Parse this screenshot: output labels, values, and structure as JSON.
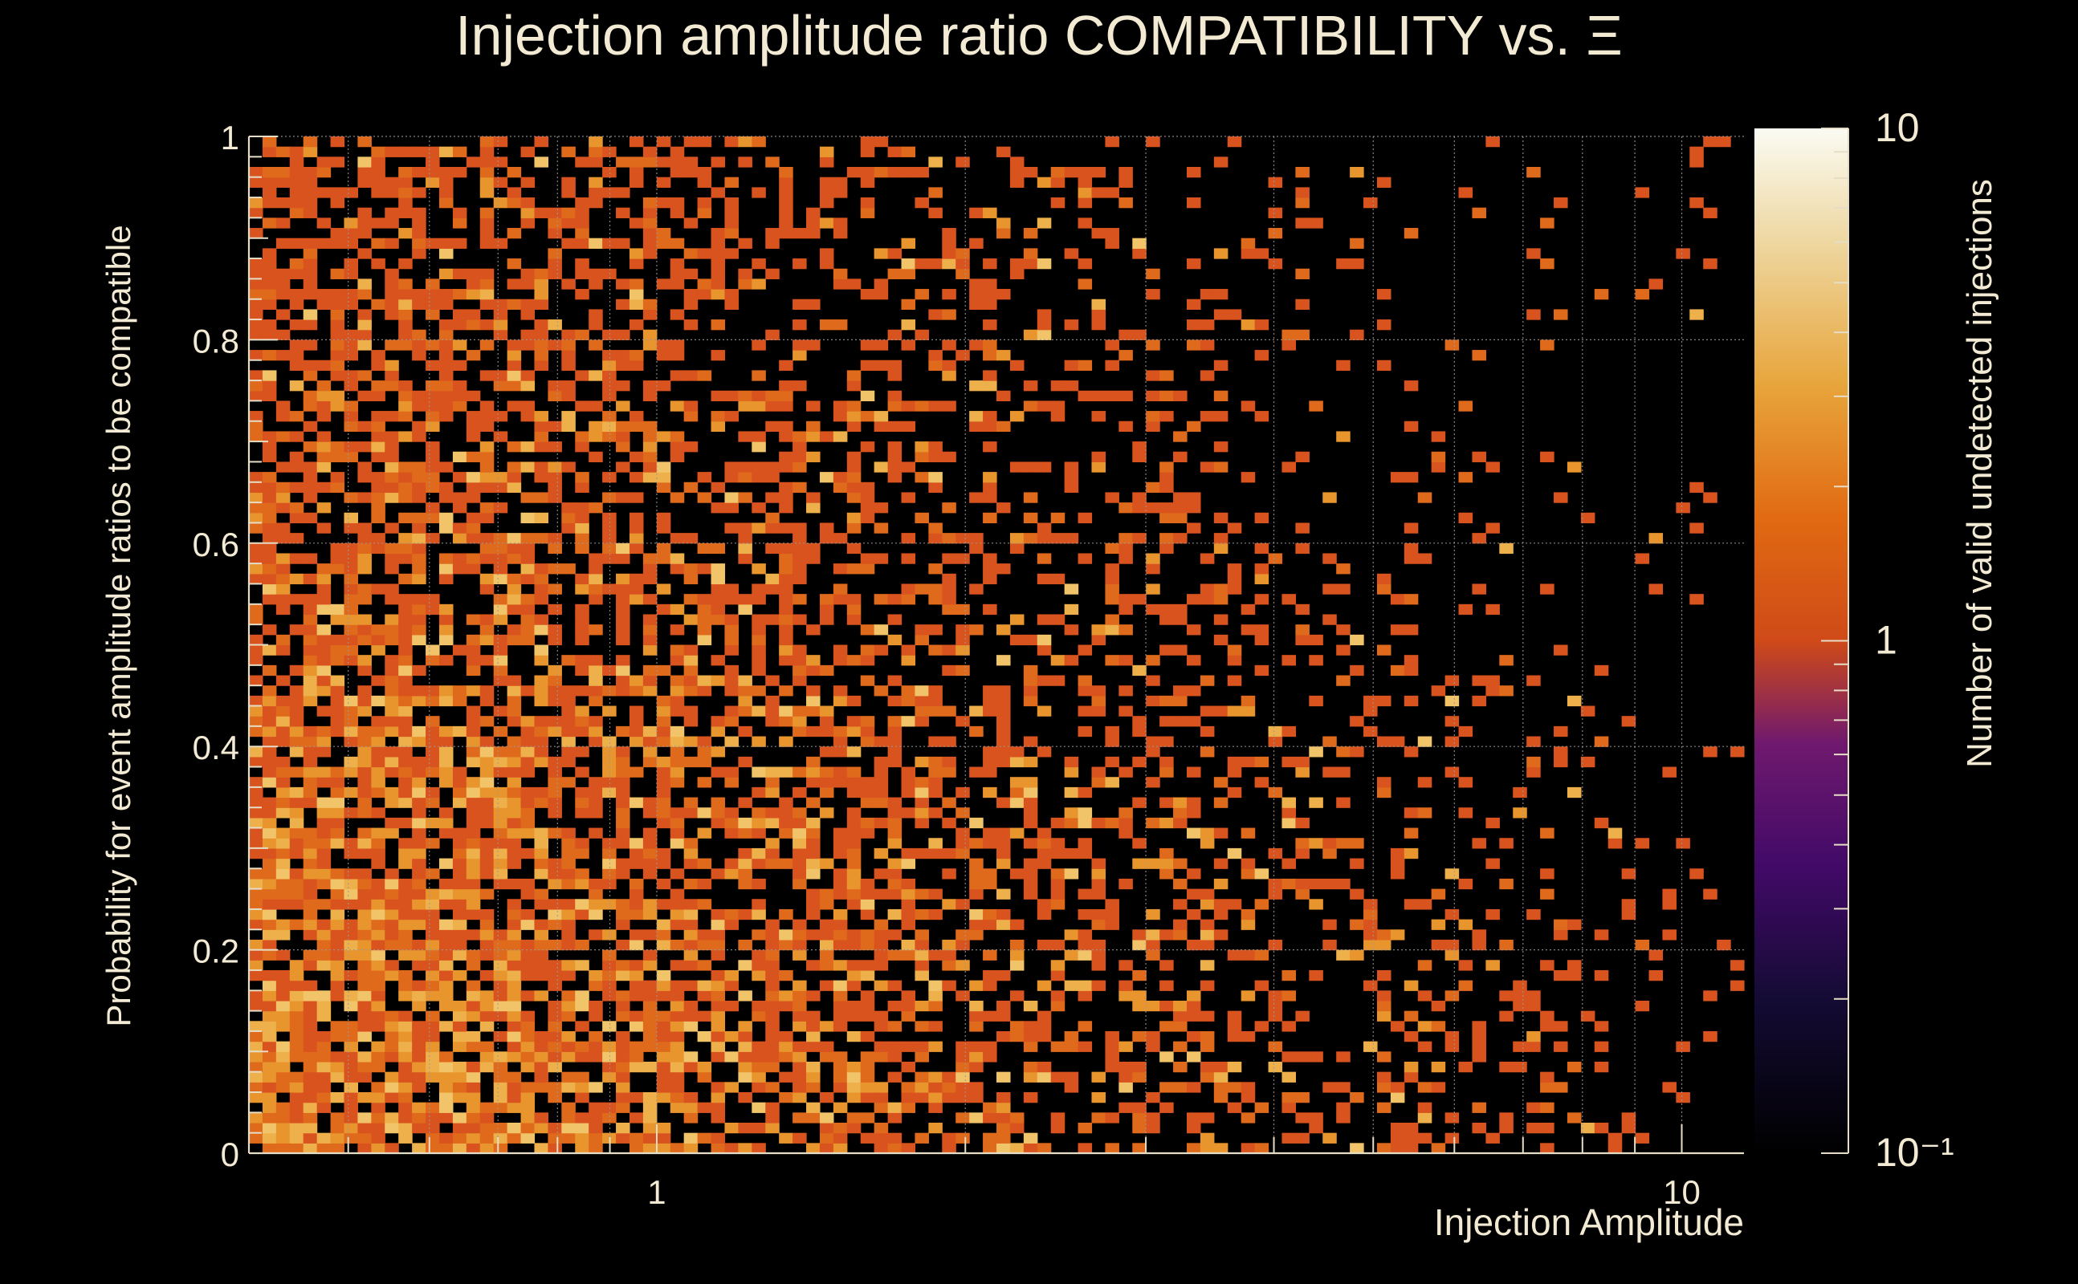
{
  "chart_data": {
    "type": "heatmap",
    "title": "Injection amplitude ratio COMPATIBILITY vs.  Ξ",
    "xlabel": "Injection Amplitude",
    "ylabel": "Probability for event amplitude ratios to be compatible",
    "colorbar_label": "Number of valid undetected injections",
    "x_scale": "log",
    "x_range": [
      0.4,
      11.5
    ],
    "y_range": [
      0,
      1
    ],
    "x_tick_labels": [
      "1",
      "10"
    ],
    "y_tick_labels": [
      "0",
      "0.2",
      "0.4",
      "0.6",
      "0.8",
      "1"
    ],
    "colorbar_range": [
      0.1,
      10
    ],
    "colorbar_scale": "log",
    "colorbar_tick_labels": [
      "10",
      "1",
      "10⁻¹"
    ],
    "grid": true,
    "colormap": [
      "#000004",
      "#1b0c41",
      "#4a0c6b",
      "#781c6d",
      "#a52c60",
      "#cf4446",
      "#ed6925",
      "#fb9b06",
      "#f7d13d",
      "#fcffa4"
    ],
    "bins": {
      "x": 110,
      "y": 100
    },
    "density_description": "Counts of 1–3 per bin; densest at low amplitude (0.4–1.5) and probability below 0.45, thinning toward high amplitude and high probability."
  }
}
